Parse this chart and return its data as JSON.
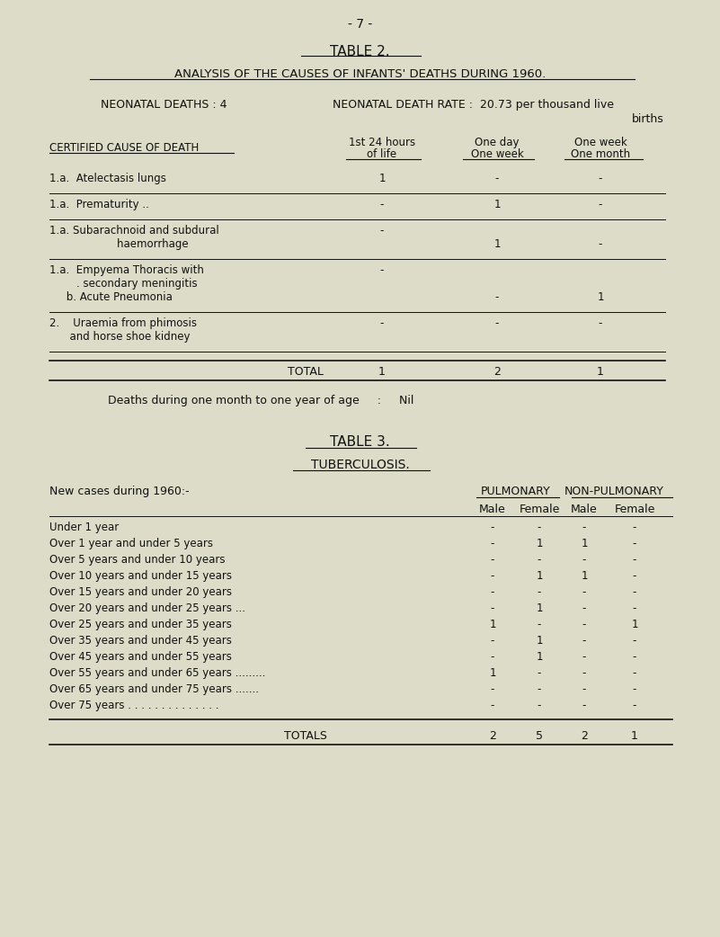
{
  "bg_color": "#dddcc8",
  "text_color": "#1a1a1a",
  "page_num": "- 7 -",
  "table2_title": "TABLE 2.",
  "table2_subtitle": "ANALYSIS OF THE CAUSES OF INFANTS' DEATHS DURING 1960.",
  "neonatal_line1": "NEONATAL DEATHS : 4          NEONATAL DEATH RATE :  20.73 per thousand live",
  "neonatal_line2": "births",
  "col_header_left": "CERTIFIED CAUSE OF DEATH",
  "col_header_mid1a": "1st 24 hours",
  "col_header_mid1b": "of life",
  "col_header_mid2a": "One day",
  "col_header_mid2b": "One week",
  "col_header_mid3a": "One week",
  "col_header_mid3b": "One month",
  "rows_table2": [
    {
      "cause_lines": [
        "1.a.  Atelectasis lungs"
      ],
      "c1": "1",
      "c2": "-",
      "c3": "-",
      "c2_row": 0,
      "c3_row": 0
    },
    {
      "cause_lines": [
        "1.a.  Prematurity .."
      ],
      "c1": "-",
      "c2": "1",
      "c3": "-",
      "c2_row": 0,
      "c3_row": 0
    },
    {
      "cause_lines": [
        "1.a. Subarachnoid and subdural",
        "                    haemorrhage"
      ],
      "c1": "-",
      "c2": "1",
      "c3": "-",
      "c2_row": 1,
      "c3_row": 1
    },
    {
      "cause_lines": [
        "1.a.  Empyema Thoracis with",
        "        . secondary meningitis",
        "     b. Acute Pneumonia"
      ],
      "c1": "-",
      "c2": "-",
      "c3": "1",
      "c2_row": 2,
      "c3_row": 2
    },
    {
      "cause_lines": [
        "2.    Uraemia from phimosis",
        "      and horse shoe kidney"
      ],
      "c1": "-",
      "c2": "-",
      "c3": "-",
      "c2_row": 0,
      "c3_row": 0
    }
  ],
  "total_row": {
    "label": "TOTAL",
    "c1": "1",
    "c2": "2",
    "c3": "1"
  },
  "deaths_note": "Deaths during one month to one year of age     :     Nil",
  "table3_title": "TABLE 3.",
  "table3_subtitle": "TUBERCULOSIS.",
  "new_cases_label": "New cases during 1960:-",
  "pulmonary_header": "PULMONARY",
  "non_pulmonary_header": "NON-PULMONARY",
  "tb_rows": [
    {
      "label": "Under 1 year",
      "pm": "-",
      "pf": "-",
      "nm": "-",
      "nf": "-"
    },
    {
      "label": "Over 1 year and under 5 years",
      "pm": "-",
      "pf": "1",
      "nm": "1",
      "nf": "-"
    },
    {
      "label": "Over 5 years and under 10 years",
      "pm": "-",
      "pf": "-",
      "nm": "-",
      "nf": "-"
    },
    {
      "label": "Over 10 years and under 15 years",
      "pm": "-",
      "pf": "1",
      "nm": "1",
      "nf": "-"
    },
    {
      "label": "Over 15 years and under 20 years",
      "pm": "-",
      "pf": "-",
      "nm": "-",
      "nf": "-"
    },
    {
      "label": "Over 20 years and under 25 years ...",
      "pm": "-",
      "pf": "1",
      "nm": "-",
      "nf": "-"
    },
    {
      "label": "Over 25 years and under 35 years",
      "pm": "1",
      "pf": "-",
      "nm": "-",
      "nf": "1"
    },
    {
      "label": "Over 35 years and under 45 years",
      "pm": "-",
      "pf": "1",
      "nm": "-",
      "nf": "-"
    },
    {
      "label": "Over 45 years and under 55 years",
      "pm": "-",
      "pf": "1",
      "nm": "-",
      "nf": "-"
    },
    {
      "label": "Over 55 years and under 65 years .........",
      "pm": "1",
      "pf": "-",
      "nm": "-",
      "nf": "-"
    },
    {
      "label": "Over 65 years and under 75 years .......",
      "pm": "-",
      "pf": "-",
      "nm": "-",
      "nf": "-"
    },
    {
      "label": "Over 75 years . . . . . . . . . . . . . .",
      "pm": "-",
      "pf": "-",
      "nm": "-",
      "nf": "-"
    }
  ],
  "tb_totals": {
    "label": "TOTALS",
    "pm": "2",
    "pf": "5",
    "nm": "2",
    "nf": "1"
  },
  "fig_w": 801,
  "fig_h": 1042
}
